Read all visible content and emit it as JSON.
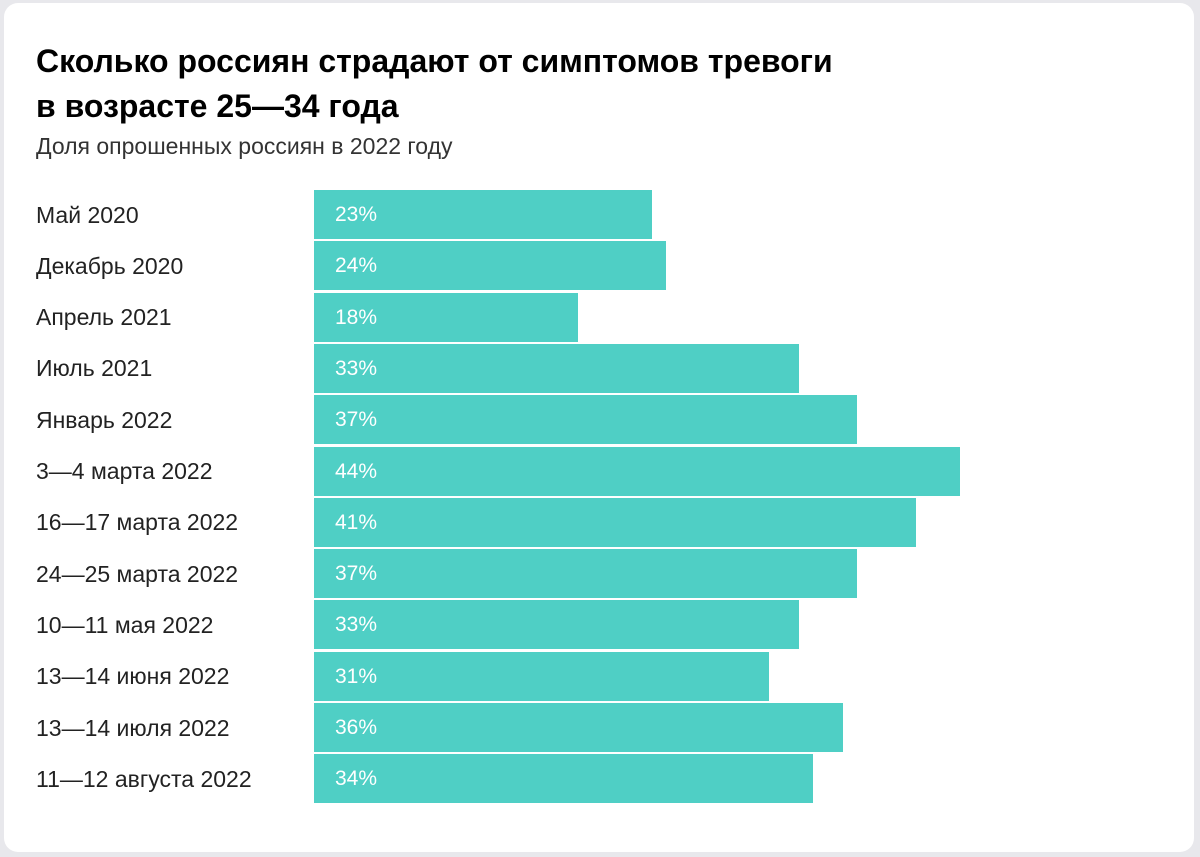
{
  "chart_data": {
    "type": "bar",
    "orientation": "horizontal",
    "title_lines": [
      "Сколько россиян страдают от симптомов тревоги",
      "в возрасте 25—34 года"
    ],
    "subtitle": "Доля опрошенных россиян в 2022 году",
    "categories": [
      "Май 2020",
      "Декабрь 2020",
      "Апрель 2021",
      "Июль 2021",
      "Январь 2022",
      "3—4 марта 2022",
      "16—17 марта 2022",
      "24—25 марта 2022",
      "10—11 мая 2022",
      "13—14 июня 2022",
      "13—14 июля 2022",
      "11—12 августа 2022"
    ],
    "values": [
      23,
      24,
      18,
      33,
      37,
      44,
      41,
      37,
      33,
      31,
      36,
      34
    ],
    "value_labels": [
      "23%",
      "24%",
      "18%",
      "33%",
      "37%",
      "44%",
      "41%",
      "37%",
      "33%",
      "31%",
      "36%",
      "34%"
    ],
    "unit": "%",
    "xlim": [
      0,
      44
    ],
    "grid": false,
    "legend": "none",
    "bar_color": "#4fcfc5"
  }
}
